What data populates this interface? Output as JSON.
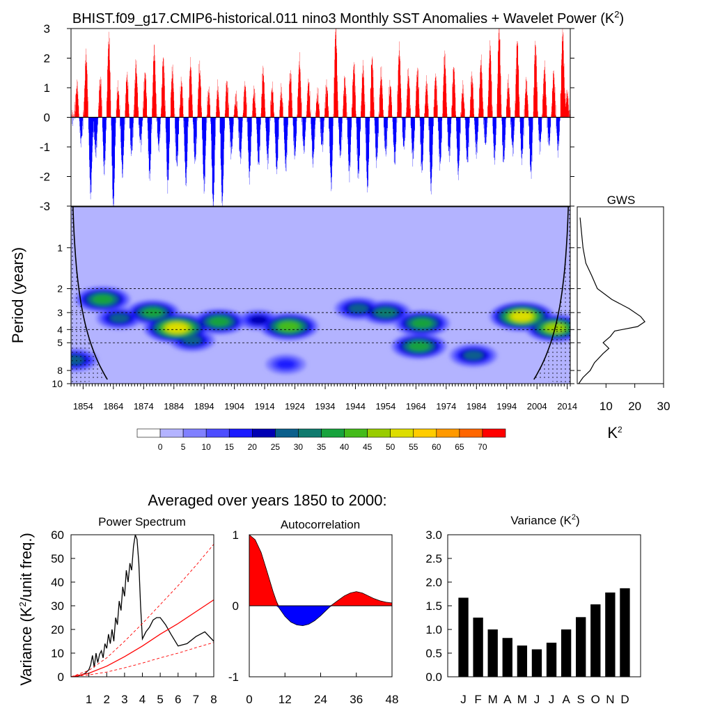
{
  "figure": {
    "title_text": "BHIST.f09_g17.CMIP6-historical.011 nino3 Monthly SST Anomalies + Wavelet Power (K",
    "title_sup": "2",
    "title_close": ")",
    "subtitle": "Averaged over years 1850 to 2000:"
  },
  "chart_data": [
    {
      "id": "sst_anomaly",
      "type": "bar",
      "title": "nino3 Monthly SST Anomalies",
      "ylim": [
        -3,
        3
      ],
      "yticks": [
        "3",
        "2",
        "1",
        "0",
        "-1",
        "-2",
        "-3"
      ],
      "xlim": [
        1850,
        2015
      ],
      "positive_color": "#ff0000",
      "negative_color": "#0000ff",
      "events": [
        {
          "year": 1852,
          "value": 1.1
        },
        {
          "year": 1853.3,
          "value": -0.8
        },
        {
          "year": 1855,
          "value": 2.1
        },
        {
          "year": 1856.5,
          "value": -2.6
        },
        {
          "year": 1858.2,
          "value": -1.2
        },
        {
          "year": 1859.7,
          "value": 1.3
        },
        {
          "year": 1861,
          "value": -1.8
        },
        {
          "year": 1862.5,
          "value": 2.7
        },
        {
          "year": 1864,
          "value": -3.0
        },
        {
          "year": 1865.5,
          "value": 1.0
        },
        {
          "year": 1867,
          "value": -1.9
        },
        {
          "year": 1868.5,
          "value": 1.4
        },
        {
          "year": 1870,
          "value": -1.2
        },
        {
          "year": 1871.5,
          "value": 1.8
        },
        {
          "year": 1873,
          "value": -0.9
        },
        {
          "year": 1874.5,
          "value": 1.5
        },
        {
          "year": 1876,
          "value": -2.0
        },
        {
          "year": 1877.5,
          "value": 2.3
        },
        {
          "year": 1879,
          "value": -1.0
        },
        {
          "year": 1880.5,
          "value": 2.0
        },
        {
          "year": 1882,
          "value": -2.3
        },
        {
          "year": 1883.5,
          "value": 1.6
        },
        {
          "year": 1885,
          "value": -1.6
        },
        {
          "year": 1886.5,
          "value": 1.2
        },
        {
          "year": 1888,
          "value": -2.2
        },
        {
          "year": 1889.5,
          "value": 1.8
        },
        {
          "year": 1891,
          "value": -1.5
        },
        {
          "year": 1892.5,
          "value": 1.7
        },
        {
          "year": 1894,
          "value": -2.4
        },
        {
          "year": 1895.5,
          "value": 0.9
        },
        {
          "year": 1897,
          "value": -3.0
        },
        {
          "year": 1898.5,
          "value": 1.0
        },
        {
          "year": 1900,
          "value": -2.9
        },
        {
          "year": 1901.5,
          "value": 1.2
        },
        {
          "year": 1903,
          "value": -1.2
        },
        {
          "year": 1904.5,
          "value": 0.7
        },
        {
          "year": 1906,
          "value": -1.4
        },
        {
          "year": 1907.5,
          "value": 1.1
        },
        {
          "year": 1909,
          "value": -2.0
        },
        {
          "year": 1910.5,
          "value": 0.9
        },
        {
          "year": 1912,
          "value": -1.6
        },
        {
          "year": 1913.5,
          "value": 1.6
        },
        {
          "year": 1915,
          "value": -1.5
        },
        {
          "year": 1916.5,
          "value": 1.0
        },
        {
          "year": 1918,
          "value": -1.8
        },
        {
          "year": 1919.5,
          "value": 0.9
        },
        {
          "year": 1921,
          "value": -1.7
        },
        {
          "year": 1922.5,
          "value": 1.5
        },
        {
          "year": 1924,
          "value": -1.3
        },
        {
          "year": 1925.5,
          "value": 1.9
        },
        {
          "year": 1927,
          "value": -1.1
        },
        {
          "year": 1928.5,
          "value": 1.2
        },
        {
          "year": 1930,
          "value": -1.5
        },
        {
          "year": 1931.5,
          "value": 0.8
        },
        {
          "year": 1933,
          "value": -1.0
        },
        {
          "year": 1934.5,
          "value": 1.1
        },
        {
          "year": 1936,
          "value": -2.3
        },
        {
          "year": 1937.5,
          "value": 3.0
        },
        {
          "year": 1939,
          "value": -1.3
        },
        {
          "year": 1940.5,
          "value": 1.3
        },
        {
          "year": 1942,
          "value": -1.9
        },
        {
          "year": 1943.5,
          "value": 1.8
        },
        {
          "year": 1945,
          "value": -2.0
        },
        {
          "year": 1946.5,
          "value": 1.7
        },
        {
          "year": 1948,
          "value": -2.4
        },
        {
          "year": 1949.5,
          "value": 2.0
        },
        {
          "year": 1951,
          "value": -1.5
        },
        {
          "year": 1952.5,
          "value": 1.5
        },
        {
          "year": 1954,
          "value": -1.2
        },
        {
          "year": 1955.5,
          "value": 1.1
        },
        {
          "year": 1957,
          "value": -1.5
        },
        {
          "year": 1958.5,
          "value": 2.3
        },
        {
          "year": 1960,
          "value": -1.0
        },
        {
          "year": 1961.5,
          "value": 1.5
        },
        {
          "year": 1963,
          "value": -1.4
        },
        {
          "year": 1964.5,
          "value": 1.6
        },
        {
          "year": 1966,
          "value": -1.8
        },
        {
          "year": 1967.5,
          "value": 1.2
        },
        {
          "year": 1969,
          "value": -2.4
        },
        {
          "year": 1970.5,
          "value": 1.4
        },
        {
          "year": 1972,
          "value": -1.6
        },
        {
          "year": 1973.5,
          "value": 2.1
        },
        {
          "year": 1975,
          "value": -1.3
        },
        {
          "year": 1976.5,
          "value": 1.7
        },
        {
          "year": 1978,
          "value": -1.9
        },
        {
          "year": 1979.5,
          "value": 1.0
        },
        {
          "year": 1981,
          "value": -1.5
        },
        {
          "year": 1982.5,
          "value": 1.4
        },
        {
          "year": 1984,
          "value": -1.2
        },
        {
          "year": 1985.5,
          "value": 1.9
        },
        {
          "year": 1987,
          "value": -0.9
        },
        {
          "year": 1988.5,
          "value": 2.4
        },
        {
          "year": 1990,
          "value": -1.4
        },
        {
          "year": 1991.5,
          "value": 3.0
        },
        {
          "year": 1993,
          "value": -1.5
        },
        {
          "year": 1994.5,
          "value": 1.2
        },
        {
          "year": 1996,
          "value": -1.1
        },
        {
          "year": 1997.5,
          "value": 2.6
        },
        {
          "year": 1999,
          "value": -1.4
        },
        {
          "year": 2000.5,
          "value": 1.2
        },
        {
          "year": 2002,
          "value": -1.9
        },
        {
          "year": 2003.5,
          "value": 2.5
        },
        {
          "year": 2005,
          "value": -1.0
        },
        {
          "year": 2006.5,
          "value": 1.7
        },
        {
          "year": 2008,
          "value": -0.9
        },
        {
          "year": 2009.5,
          "value": 1.5
        },
        {
          "year": 2011,
          "value": -1.1
        },
        {
          "year": 2012.5,
          "value": 2.9
        },
        {
          "year": 2014,
          "value": 0.8
        }
      ]
    },
    {
      "id": "wavelet_power",
      "type": "heatmap",
      "ylabel": "Period (years)",
      "ylim": [
        0.5,
        10
      ],
      "ytick_values": [
        1,
        2,
        3,
        4,
        5,
        8,
        10
      ],
      "yticks": [
        "1",
        "2",
        "3",
        "4",
        "5",
        "8",
        "10"
      ],
      "dashed_periods": [
        2,
        3,
        4,
        5
      ],
      "xlim": [
        1850,
        2015
      ],
      "xtick_values": [
        1854,
        1864,
        1874,
        1884,
        1894,
        1904,
        1914,
        1924,
        1934,
        1944,
        1954,
        1964,
        1974,
        1984,
        1994,
        2004,
        2014
      ],
      "xticks": [
        "1854",
        "1864",
        "1874",
        "1884",
        "1894",
        "1904",
        "1914",
        "1924",
        "1934",
        "1944",
        "1954",
        "1964",
        "1974",
        "1984",
        "1994",
        "2004",
        "2014"
      ],
      "levels": [
        0,
        5,
        10,
        15,
        20,
        25,
        30,
        35,
        40,
        45,
        50,
        55,
        60,
        65,
        70
      ],
      "colors": [
        "#ffffff",
        "#b3b3ff",
        "#8080ff",
        "#4d4dff",
        "#1a1aff",
        "#0000b3",
        "#0a5f8c",
        "#0f7a6e",
        "#17a33d",
        "#44bb1a",
        "#99cc00",
        "#dddd00",
        "#ffcc00",
        "#ff9900",
        "#ff6600",
        "#ff0000"
      ],
      "blobs": [
        {
          "year": 1851,
          "period": 6.7,
          "power": 30
        },
        {
          "year": 1860.5,
          "period": 2.4,
          "power": 40
        },
        {
          "year": 1866,
          "period": 3.3,
          "power": 28
        },
        {
          "year": 1877,
          "period": 3.0,
          "power": 38
        },
        {
          "year": 1885,
          "period": 3.9,
          "power": 55
        },
        {
          "year": 1890,
          "period": 4.8,
          "power": 28
        },
        {
          "year": 1899,
          "period": 3.5,
          "power": 38
        },
        {
          "year": 1912,
          "period": 3.4,
          "power": 22
        },
        {
          "year": 1922,
          "period": 3.8,
          "power": 45
        },
        {
          "year": 1921,
          "period": 7.2,
          "power": 20
        },
        {
          "year": 1945,
          "period": 2.8,
          "power": 30
        },
        {
          "year": 1954,
          "period": 3.0,
          "power": 34
        },
        {
          "year": 1966,
          "period": 3.6,
          "power": 40
        },
        {
          "year": 1965,
          "period": 5.3,
          "power": 40
        },
        {
          "year": 1983,
          "period": 6.2,
          "power": 30
        },
        {
          "year": 1999,
          "period": 3.2,
          "power": 52
        },
        {
          "year": 2010,
          "period": 3.9,
          "power": 46
        }
      ]
    },
    {
      "id": "gws",
      "type": "line",
      "title": "GWS",
      "xlabel": "K",
      "xlabel_sup": "2",
      "xlim": [
        0,
        30
      ],
      "xtick_values": [
        10,
        20,
        30
      ],
      "xticks": [
        "10",
        "20",
        "30"
      ],
      "period": [
        0.6,
        1.0,
        1.3,
        1.6,
        2.0,
        2.4,
        2.8,
        3.2,
        3.5,
        3.8,
        4.1,
        4.5,
        5.0,
        5.5,
        6.0,
        7.0,
        8.0,
        9.0,
        10.0
      ],
      "values": [
        1.0,
        2.0,
        3.0,
        5.0,
        7.0,
        12.0,
        18.0,
        22.0,
        23.5,
        21.0,
        13.0,
        11.5,
        9.0,
        11.0,
        9.0,
        6.0,
        4.5,
        2.0,
        0.5
      ]
    },
    {
      "id": "power_spectrum",
      "type": "line",
      "title": "Power Spectrum",
      "ylabel": "Variance (K",
      "ylabel_sup": "2",
      "ylabel_close": "/unit freq.)",
      "xlim": [
        0,
        8
      ],
      "ylim": [
        0,
        60
      ],
      "xtick_values": [
        1,
        2,
        3,
        4,
        5,
        6,
        7,
        8
      ],
      "xticks": [
        "1",
        "2",
        "3",
        "4",
        "5",
        "6",
        "7",
        "8"
      ],
      "ytick_values": [
        0,
        10,
        20,
        30,
        40,
        50,
        60
      ],
      "yticks": [
        "0",
        "10",
        "20",
        "30",
        "40",
        "50",
        "60"
      ],
      "series": [
        {
          "name": "spectrum",
          "color": "#000000",
          "x": [
            0.0,
            0.3,
            0.6,
            0.8,
            1.0,
            1.1,
            1.2,
            1.3,
            1.4,
            1.5,
            1.6,
            1.7,
            1.8,
            1.9,
            2.0,
            2.1,
            2.2,
            2.3,
            2.4,
            2.5,
            2.6,
            2.7,
            2.8,
            2.9,
            3.0,
            3.1,
            3.2,
            3.3,
            3.4,
            3.5,
            3.6,
            3.7,
            3.8,
            3.9,
            4.0,
            4.2,
            4.4,
            4.6,
            4.8,
            5.0,
            5.3,
            5.6,
            6.0,
            6.5,
            7.0,
            7.5,
            8.0
          ],
          "y": [
            0.0,
            0.2,
            0.8,
            1.5,
            3.0,
            5.0,
            9.0,
            4.0,
            10.0,
            6.0,
            9.5,
            11.0,
            8.0,
            14.0,
            12.0,
            18.0,
            14.0,
            20.0,
            15.0,
            25.0,
            22.0,
            32.0,
            28.0,
            38.0,
            34.0,
            45.0,
            40.0,
            48.0,
            45.0,
            55.0,
            60.0,
            58.0,
            48.0,
            30.0,
            16.0,
            19.0,
            21.0,
            24.0,
            25.0,
            25.0,
            22.0,
            18.0,
            13.0,
            14.0,
            17.0,
            19.0,
            15.0
          ]
        },
        {
          "name": "red-noise mean",
          "color": "#ff0000",
          "x": [
            0,
            1,
            2,
            3,
            4,
            5,
            6,
            7,
            8
          ],
          "y": [
            0.0,
            1.5,
            4.5,
            8.5,
            13.0,
            18.0,
            22.5,
            27.5,
            32.5
          ]
        },
        {
          "name": "upper confidence",
          "color": "#ff0000",
          "dashed": true,
          "x": [
            0,
            1,
            2,
            3,
            4,
            5,
            6,
            7,
            8
          ],
          "y": [
            0.0,
            2.7,
            8.0,
            15.0,
            22.5,
            30.5,
            38.5,
            47.0,
            56.0
          ]
        },
        {
          "name": "lower confidence",
          "color": "#ff0000",
          "dashed": true,
          "x": [
            0,
            1,
            2,
            3,
            4,
            5,
            6,
            7,
            8
          ],
          "y": [
            0.0,
            0.8,
            2.0,
            3.8,
            5.8,
            8.0,
            10.0,
            12.3,
            14.5
          ]
        }
      ]
    },
    {
      "id": "autocorrelation",
      "type": "area",
      "title": "Autocorrelation",
      "xlim": [
        0,
        48
      ],
      "ylim": [
        -1,
        1
      ],
      "xtick_values": [
        0,
        12,
        24,
        36,
        48
      ],
      "xticks": [
        "0",
        "12",
        "24",
        "36",
        "48"
      ],
      "ytick_values": [
        1,
        0,
        -1
      ],
      "yticks": [
        "1",
        "0",
        "-1"
      ],
      "positive_color": "#ff0000",
      "negative_color": "#0000ff",
      "x": [
        0,
        2,
        4,
        6,
        8,
        9,
        10,
        12,
        14,
        16,
        18,
        20,
        22,
        24,
        26,
        27,
        28,
        30,
        32,
        34,
        36,
        38,
        40,
        42,
        44,
        46,
        48
      ],
      "y": [
        1.0,
        0.93,
        0.75,
        0.48,
        0.2,
        0.08,
        -0.03,
        -0.15,
        -0.23,
        -0.27,
        -0.28,
        -0.26,
        -0.21,
        -0.14,
        -0.06,
        -0.02,
        0.02,
        0.08,
        0.14,
        0.18,
        0.2,
        0.18,
        0.14,
        0.1,
        0.07,
        0.05,
        0.04
      ]
    },
    {
      "id": "variance",
      "type": "bar",
      "title": "Variance (K",
      "title_sup": "2",
      "title_close": ")",
      "categories": [
        "J",
        "F",
        "M",
        "A",
        "M",
        "J",
        "J",
        "A",
        "S",
        "O",
        "N",
        "D"
      ],
      "values": [
        1.67,
        1.25,
        1.0,
        0.82,
        0.66,
        0.58,
        0.72,
        1.0,
        1.26,
        1.53,
        1.78,
        1.87
      ],
      "ylim": [
        0,
        3
      ],
      "ytick_values": [
        0,
        0.5,
        1,
        1.5,
        2,
        2.5,
        3
      ],
      "yticks": [
        "0.0",
        "0.5",
        "1.0",
        "1.5",
        "2.0",
        "2.5",
        "3.0"
      ],
      "color": "#000000"
    }
  ]
}
